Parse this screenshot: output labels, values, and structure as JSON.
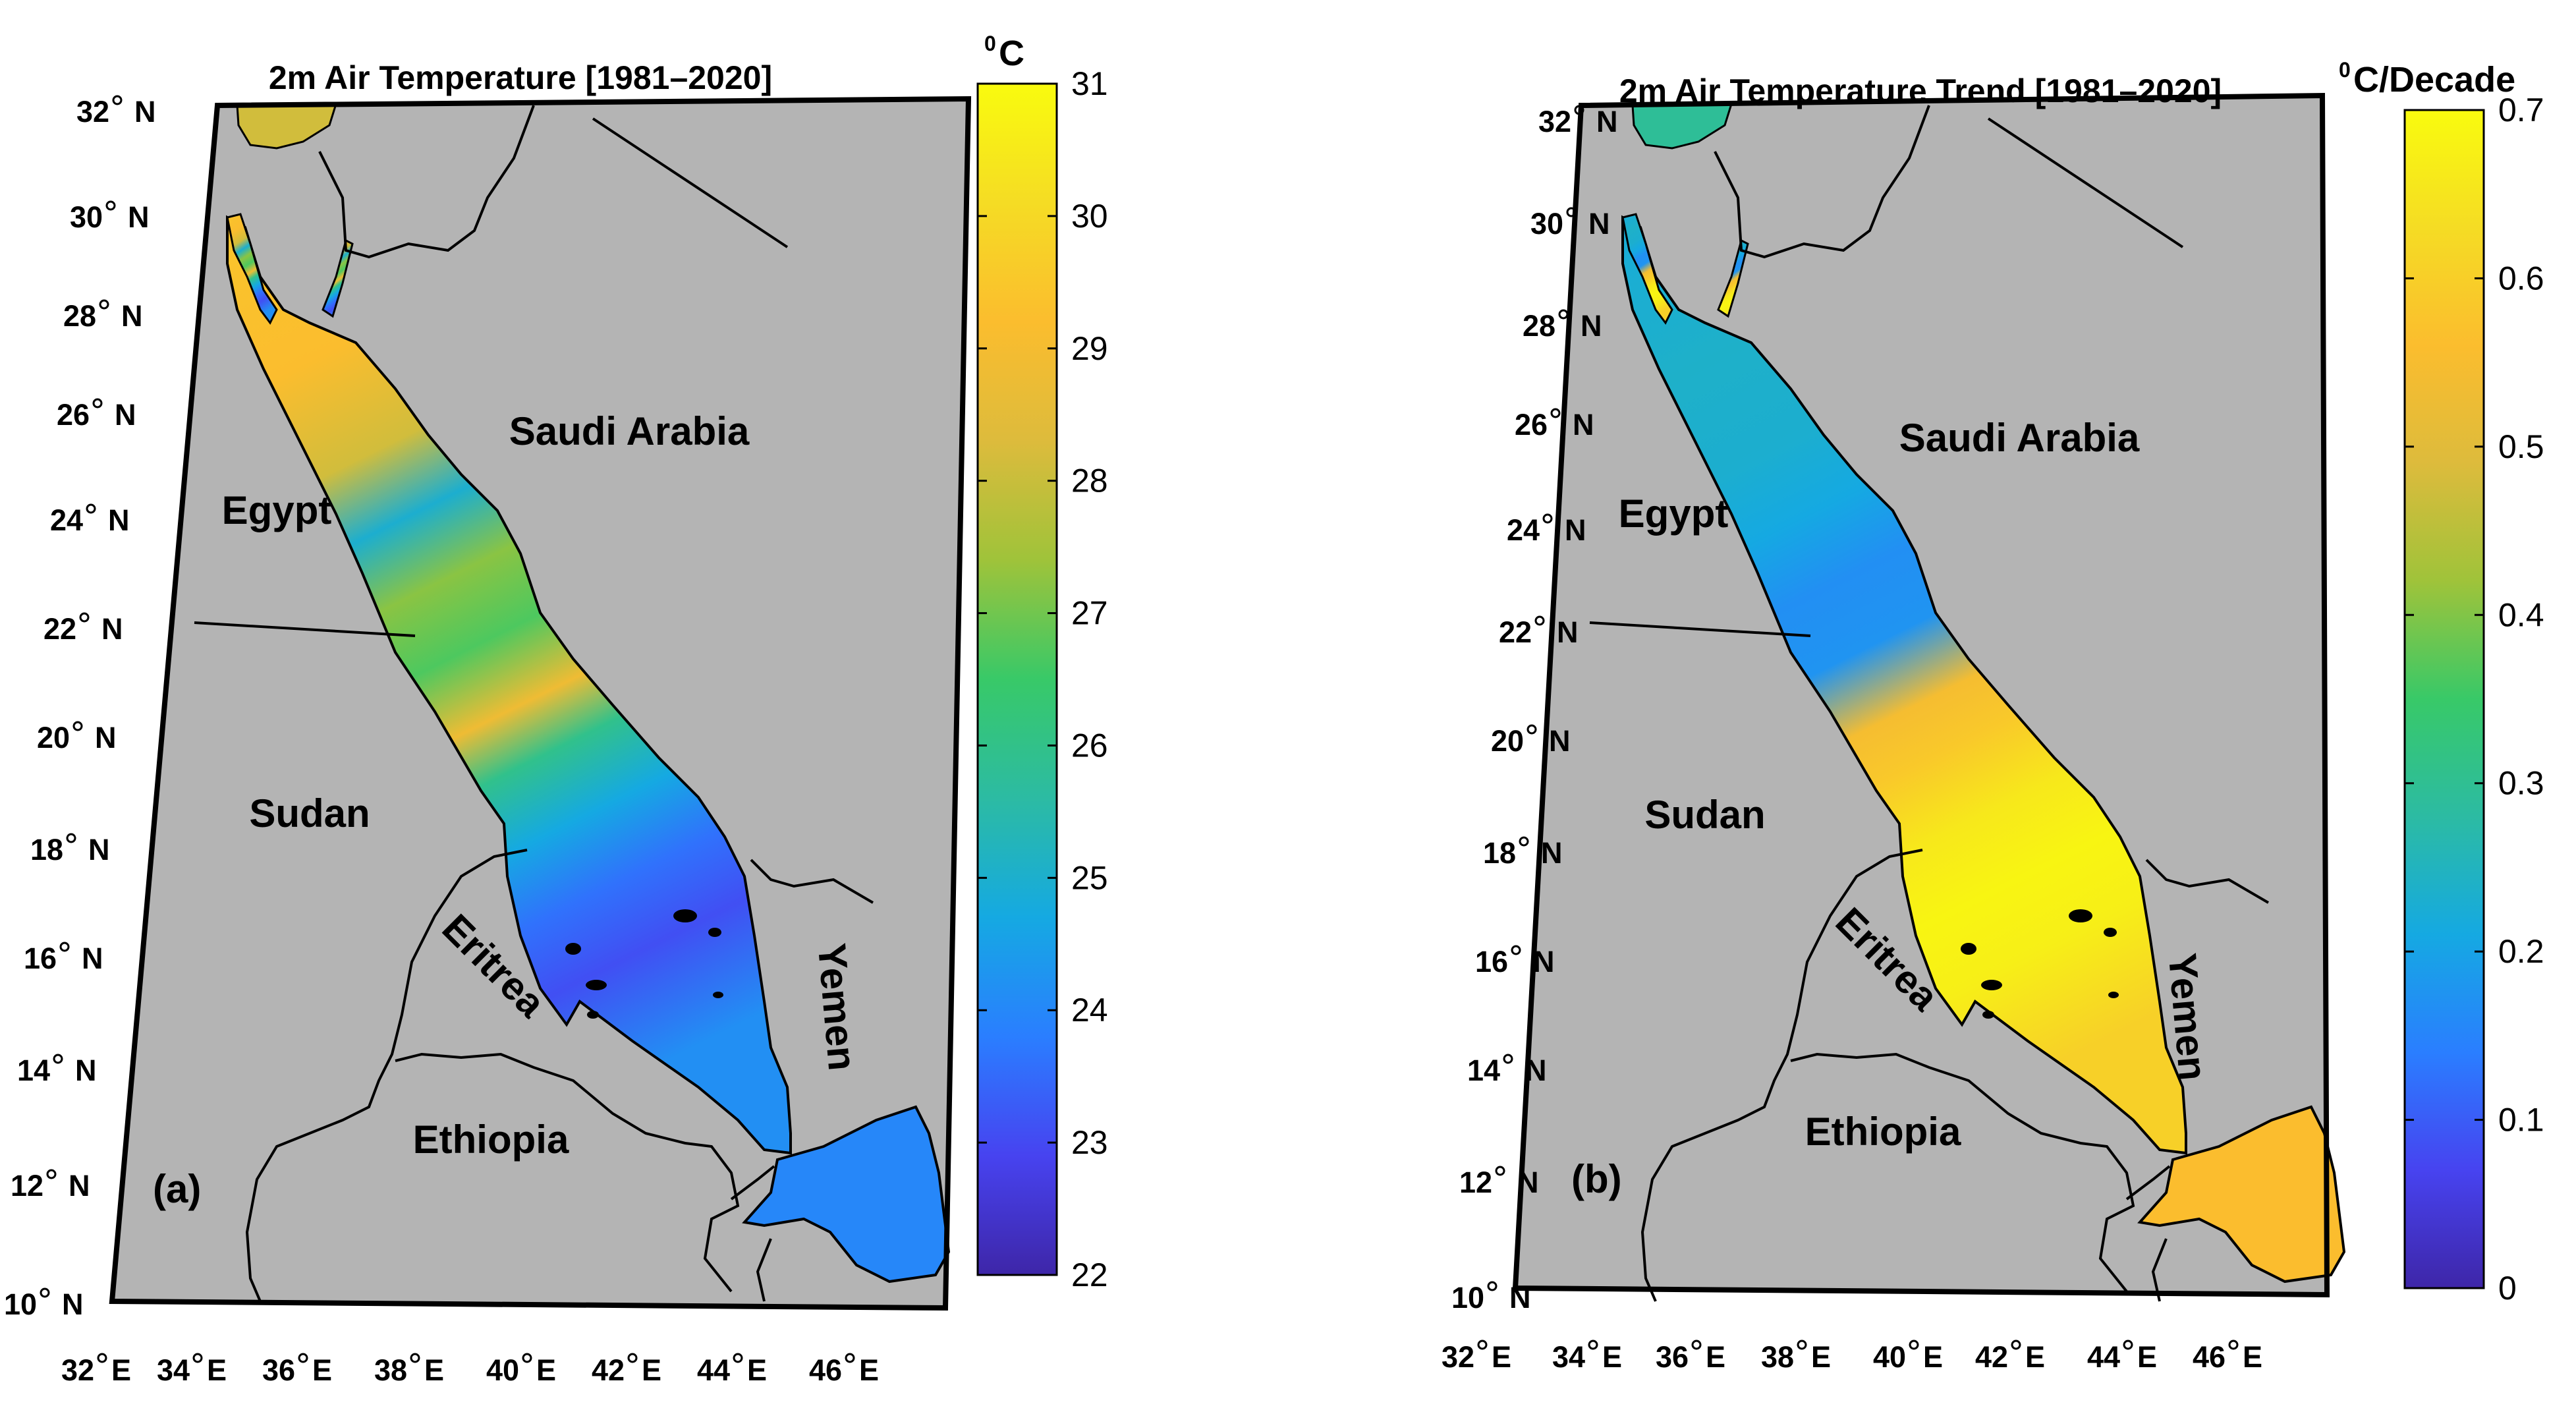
{
  "colormap": [
    "#3e26a8",
    "#4743f0",
    "#2a7eff",
    "#15a9e2",
    "#2cbba3",
    "#38c968",
    "#9fc33a",
    "#ddbb3c",
    "#fbbd2e",
    "#f5dc24",
    "#f9fb0e"
  ],
  "colors": {
    "land": "#b4b4b4",
    "border": "#000000",
    "background": "#ffffff"
  },
  "maps": [
    {
      "id": "a",
      "title": "2m Air Temperature [1981–2020]",
      "panel_label": "(a)",
      "colorbar": {
        "unit_base": "C",
        "unit_superscript": "0",
        "min": 22,
        "max": 31,
        "ticks": [
          "22",
          "23",
          "24",
          "25",
          "26",
          "27",
          "28",
          "29",
          "30",
          "31"
        ]
      },
      "lat_ticks": [
        {
          "deg": "32",
          "hemi": "N"
        },
        {
          "deg": "30",
          "hemi": "N"
        },
        {
          "deg": "28",
          "hemi": "N"
        },
        {
          "deg": "26",
          "hemi": "N"
        },
        {
          "deg": "24",
          "hemi": "N"
        },
        {
          "deg": "22",
          "hemi": "N"
        },
        {
          "deg": "20",
          "hemi": "N"
        },
        {
          "deg": "18",
          "hemi": "N"
        },
        {
          "deg": "16",
          "hemi": "N"
        },
        {
          "deg": "14",
          "hemi": "N"
        },
        {
          "deg": "12",
          "hemi": "N"
        },
        {
          "deg": "10",
          "hemi": "N"
        }
      ],
      "lon_ticks": [
        {
          "deg": "32",
          "hemi": "E"
        },
        {
          "deg": "34",
          "hemi": "E"
        },
        {
          "deg": "36",
          "hemi": "E"
        },
        {
          "deg": "38",
          "hemi": "E"
        },
        {
          "deg": "40",
          "hemi": "E"
        },
        {
          "deg": "42",
          "hemi": "E"
        },
        {
          "deg": "44",
          "hemi": "E"
        },
        {
          "deg": "46",
          "hemi": "E"
        }
      ],
      "countries": [
        "Saudi Arabia",
        "Egypt",
        "Sudan",
        "Eritrea",
        "Yemen",
        "Ethiopia"
      ]
    },
    {
      "id": "b",
      "title": "2m Air Temperature Trend [1981–2020]",
      "panel_label": "(b)",
      "colorbar": {
        "unit_base": "C/Decade",
        "unit_superscript": "0",
        "min": 0,
        "max": 0.7,
        "ticks": [
          "0",
          "0.1",
          "0.2",
          "0.3",
          "0.4",
          "0.5",
          "0.6",
          "0.7"
        ]
      },
      "lat_ticks": [
        {
          "deg": "32",
          "hemi": "N"
        },
        {
          "deg": "30",
          "hemi": "N"
        },
        {
          "deg": "28",
          "hemi": "N"
        },
        {
          "deg": "26",
          "hemi": "N"
        },
        {
          "deg": "24",
          "hemi": "N"
        },
        {
          "deg": "22",
          "hemi": "N"
        },
        {
          "deg": "20",
          "hemi": "N"
        },
        {
          "deg": "18",
          "hemi": "N"
        },
        {
          "deg": "16",
          "hemi": "N"
        },
        {
          "deg": "14",
          "hemi": "N"
        },
        {
          "deg": "12",
          "hemi": "N"
        },
        {
          "deg": "10",
          "hemi": "N"
        }
      ],
      "lon_ticks": [
        {
          "deg": "32",
          "hemi": "E"
        },
        {
          "deg": "34",
          "hemi": "E"
        },
        {
          "deg": "36",
          "hemi": "E"
        },
        {
          "deg": "38",
          "hemi": "E"
        },
        {
          "deg": "40",
          "hemi": "E"
        },
        {
          "deg": "42",
          "hemi": "E"
        },
        {
          "deg": "44",
          "hemi": "E"
        },
        {
          "deg": "46",
          "hemi": "E"
        }
      ],
      "countries": [
        "Saudi Arabia",
        "Egypt",
        "Sudan",
        "Eritrea",
        "Yemen",
        "Ethiopia"
      ]
    }
  ]
}
